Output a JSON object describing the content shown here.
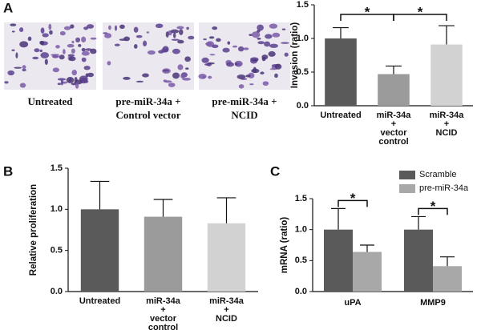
{
  "panel_labels": [
    "A",
    "B",
    "C"
  ],
  "images": {
    "captions": [
      "Untreated",
      "pre-miR-34a +\nControl vector",
      "pre-miR-34a +\nNCID"
    ]
  },
  "chart_data": [
    {
      "type": "bar",
      "ylabel": "Invasion (ratio)",
      "categories": [
        "Untreated",
        "miR-34a\n+\nvector\ncontrol",
        "miR-34a\n+\nNCID"
      ],
      "values": [
        1.0,
        0.47,
        0.91
      ],
      "errors": [
        0.16,
        0.12,
        0.28
      ],
      "colors": [
        "#5a5a5a",
        "#9b9b9b",
        "#d2d2d2"
      ],
      "ylim": [
        0,
        1.5
      ],
      "yticks": [
        {
          "value": 0,
          "label": "0.0"
        },
        0.5,
        {
          "value": 1,
          "label": "1.0"
        },
        1.5
      ],
      "annotations": [
        {
          "text": "*",
          "between": [
            0,
            1
          ]
        },
        {
          "text": "*",
          "between": [
            1,
            2
          ]
        }
      ]
    },
    {
      "type": "bar",
      "ylabel": "Relative proliferation",
      "categories": [
        "Untreated",
        "miR-34a\n+\nvector\ncontrol",
        "miR-34a\n+\nNCID"
      ],
      "values": [
        1.0,
        0.91,
        0.83
      ],
      "errors": [
        0.34,
        0.21,
        0.31
      ],
      "colors": [
        "#5a5a5a",
        "#9b9b9b",
        "#d2d2d2"
      ],
      "ylim": [
        0,
        1.5
      ],
      "yticks": [
        {
          "value": 0,
          "label": "0.0"
        },
        0.5,
        {
          "value": 1,
          "label": "1.0"
        },
        1.5
      ]
    },
    {
      "type": "grouped-bar",
      "ylabel": "mRNA (ratio)",
      "categories": [
        "uPA",
        "MMP9"
      ],
      "series": [
        {
          "name": "Scramble",
          "color": "#5a5a5a",
          "values": [
            1.0,
            1.0
          ],
          "errors": [
            0.34,
            0.21
          ]
        },
        {
          "name": "pre-miR-34a",
          "color": "#a8a8a8",
          "values": [
            0.64,
            0.41
          ],
          "errors": [
            0.11,
            0.15
          ]
        }
      ],
      "ylim": [
        0,
        1.5
      ],
      "yticks": [
        {
          "value": 0,
          "label": "0.0"
        },
        0.5,
        {
          "value": 1,
          "label": "1.0"
        },
        1.5
      ],
      "legend": "upper right",
      "annotations": [
        {
          "text": "*",
          "category": 0
        },
        {
          "text": "*",
          "category": 1
        }
      ]
    }
  ]
}
